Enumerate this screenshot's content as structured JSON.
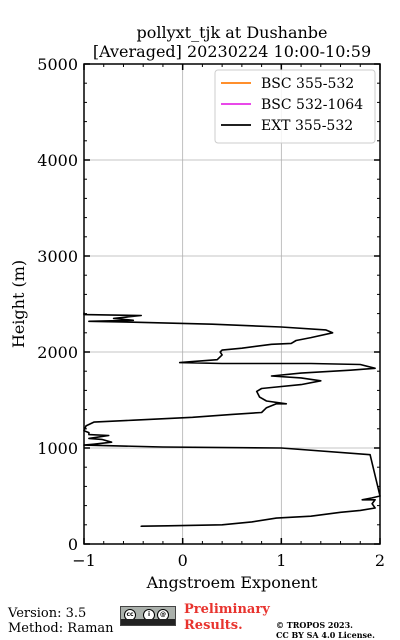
{
  "chart_data": {
    "type": "line",
    "title": "pollyxt_tjk at Dushanbe",
    "subtitle": "[Averaged] 20230224 10:00-10:59",
    "xlabel": "Angstroem Exponent",
    "ylabel": "Height (m)",
    "xlim": [
      -1,
      2
    ],
    "ylim": [
      0,
      5000
    ],
    "xticks": [
      -1,
      0,
      1,
      2
    ],
    "xtick_labels": [
      "−1",
      "0",
      "1",
      "2"
    ],
    "yticks": [
      0,
      1000,
      2000,
      3000,
      4000,
      5000
    ],
    "ytick_labels": [
      "0",
      "1000",
      "2000",
      "3000",
      "4000",
      "5000"
    ],
    "grid": true,
    "legend_position": "top-right",
    "series": [
      {
        "name": "BSC 355-532",
        "color": "#ff7f0e",
        "points": []
      },
      {
        "name": "BSC 532-1064",
        "color": "#e62ee6",
        "points": []
      },
      {
        "name": "EXT 355-532",
        "color": "#000000",
        "points": [
          [
            -0.42,
            190
          ],
          [
            -0.42,
            185
          ],
          [
            -0.15,
            190
          ],
          [
            0.4,
            200
          ],
          [
            0.7,
            230
          ],
          [
            0.95,
            270
          ],
          [
            1.3,
            290
          ],
          [
            1.6,
            330
          ],
          [
            1.8,
            350
          ],
          [
            1.95,
            375
          ],
          [
            1.92,
            420
          ],
          [
            1.95,
            460
          ],
          [
            1.82,
            460
          ],
          [
            1.92,
            480
          ],
          [
            2.0,
            500
          ],
          [
            1.9,
            930
          ],
          [
            1.0,
            1000
          ],
          [
            -0.2,
            1010
          ],
          [
            -1.0,
            1030
          ],
          [
            -0.9,
            1040
          ],
          [
            -0.72,
            1060
          ],
          [
            -0.82,
            1090
          ],
          [
            -0.95,
            1100
          ],
          [
            -0.75,
            1130
          ],
          [
            -0.95,
            1140
          ],
          [
            -0.95,
            1160
          ],
          [
            -1.0,
            1180
          ],
          [
            -0.98,
            1230
          ],
          [
            -0.9,
            1270
          ],
          [
            -0.5,
            1290
          ],
          [
            0.1,
            1320
          ],
          [
            0.5,
            1350
          ],
          [
            0.8,
            1370
          ],
          [
            0.85,
            1420
          ],
          [
            0.95,
            1460
          ],
          [
            1.05,
            1460
          ],
          [
            0.85,
            1490
          ],
          [
            0.78,
            1530
          ],
          [
            0.75,
            1590
          ],
          [
            0.8,
            1620
          ],
          [
            0.9,
            1630
          ],
          [
            1.2,
            1660
          ],
          [
            1.4,
            1700
          ],
          [
            1.2,
            1730
          ],
          [
            0.9,
            1750
          ],
          [
            1.2,
            1780
          ],
          [
            1.7,
            1810
          ],
          [
            1.95,
            1830
          ],
          [
            1.8,
            1870
          ],
          [
            1.3,
            1880
          ],
          [
            0.4,
            1880
          ],
          [
            -0.03,
            1890
          ],
          [
            0.1,
            1900
          ],
          [
            0.35,
            1920
          ],
          [
            0.4,
            1970
          ],
          [
            0.38,
            2000
          ],
          [
            0.4,
            2020
          ],
          [
            0.6,
            2040
          ],
          [
            0.9,
            2080
          ],
          [
            1.1,
            2090
          ],
          [
            1.15,
            2120
          ],
          [
            1.3,
            2150
          ],
          [
            1.52,
            2200
          ],
          [
            1.45,
            2230
          ],
          [
            1.0,
            2260
          ],
          [
            0.3,
            2290
          ],
          [
            -0.5,
            2310
          ],
          [
            -0.95,
            2320
          ],
          [
            -0.5,
            2330
          ],
          [
            -0.7,
            2350
          ],
          [
            -0.42,
            2380
          ],
          [
            -1.0,
            2390
          ],
          [
            -1.0,
            2410
          ]
        ]
      }
    ]
  },
  "footer": {
    "version": "Version: 3.5",
    "method": "Method: Raman",
    "preliminary_line1": "Preliminary",
    "preliminary_line2": "Results.",
    "copyright_line1": "© TROPOS 2023.",
    "copyright_line2": "CC BY SA 4.0 License.",
    "license_badge": [
      "cc",
      "i",
      "@",
      "BY",
      "SA"
    ]
  }
}
